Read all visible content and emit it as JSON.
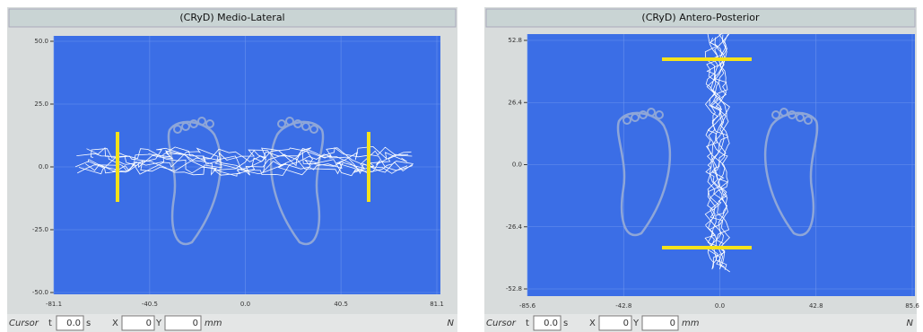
{
  "panels": [
    {
      "title": "(CRyD) Medio-Lateral",
      "xlim": [
        -81.1,
        81.1
      ],
      "xticks": [
        {
          "value": -81.1,
          "label": "-81.1"
        },
        {
          "value": -40.5,
          "label": "-40.5"
        },
        {
          "value": 0,
          "label": "0.0"
        },
        {
          "value": 40.5,
          "label": "40.5"
        },
        {
          "value": 81.1,
          "label": "81.1"
        }
      ],
      "ylim": [
        -50,
        50
      ],
      "yticks": [
        {
          "value": 50,
          "label": "50.0"
        },
        {
          "value": 25,
          "label": "25.0"
        },
        {
          "value": 0,
          "label": "0.0"
        },
        {
          "value": -25,
          "label": "-25.0"
        },
        {
          "value": -50,
          "label": "-50.0"
        }
      ],
      "cursor": {
        "label": "Cursor",
        "t_label": "t",
        "t": "0.0",
        "t_unit": "s",
        "x_label": "X",
        "x": "0",
        "y_label": "Y",
        "y": "0",
        "unit": "mm",
        "corner": "N"
      }
    },
    {
      "title": "(CRyD) Antero-Posterior",
      "xlim": [
        -85.6,
        85.6
      ],
      "xticks": [
        {
          "value": -85.6,
          "label": "-85.6"
        },
        {
          "value": -42.8,
          "label": "-42.8"
        },
        {
          "value": 0,
          "label": "0.0"
        },
        {
          "value": 42.8,
          "label": "42.8"
        },
        {
          "value": 85.6,
          "label": "85.6"
        }
      ],
      "ylim": [
        -52.8,
        52.8
      ],
      "yticks": [
        {
          "value": 52.8,
          "label": "52.8"
        },
        {
          "value": 26.4,
          "label": "26.4"
        },
        {
          "value": 0,
          "label": "0.0"
        },
        {
          "value": -26.4,
          "label": "-26.4"
        },
        {
          "value": -52.8,
          "label": "-52.8"
        }
      ],
      "cursor": {
        "label": "Cursor",
        "t_label": "t",
        "t": "0.0",
        "t_unit": "s",
        "x_label": "X",
        "x": "0",
        "y_label": "Y",
        "y": "0",
        "unit": "mm",
        "corner": "N"
      }
    }
  ]
}
